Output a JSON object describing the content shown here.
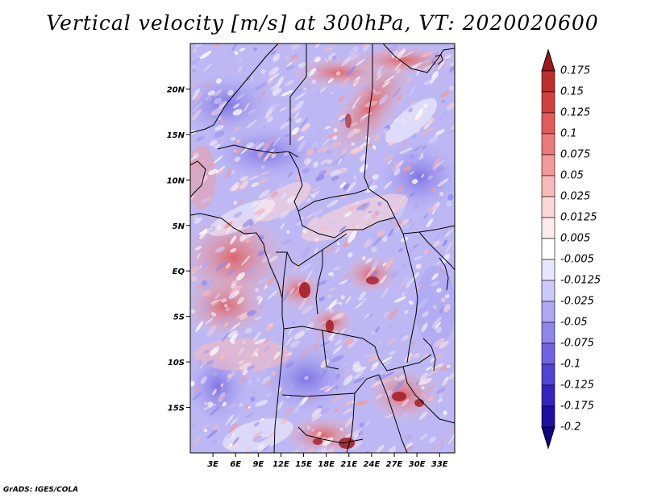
{
  "title": "Vertical velocity [m/s] at 300hPa, VT: 2020020600",
  "footer": "GrADS: IGES/COLA",
  "map": {
    "variable": "Vertical velocity",
    "units": "m/s",
    "level": "300hPa",
    "valid_time": "2020020600",
    "lon_range": [
      0,
      35
    ],
    "lat_range": [
      -20,
      25
    ],
    "x_ticks": [
      "3E",
      "6E",
      "9E",
      "12E",
      "15E",
      "18E",
      "21E",
      "24E",
      "27E",
      "30E",
      "33E"
    ],
    "y_ticks": [
      "20N",
      "15N",
      "10N",
      "5N",
      "EQ",
      "5S",
      "10S",
      "15S"
    ]
  },
  "colorbar": {
    "labels": [
      "0.175",
      "0.15",
      "0.125",
      "0.1",
      "0.075",
      "0.05",
      "0.025",
      "0.0125",
      "0.005",
      "-0.005",
      "-0.0125",
      "-0.025",
      "-0.05",
      "-0.075",
      "-0.1",
      "-0.125",
      "-0.175",
      "-0.2"
    ],
    "colors": [
      "#a0161a",
      "#bb2e2e",
      "#d04242",
      "#e05c5c",
      "#eb7a7a",
      "#f29a9a",
      "#f7baba",
      "#fbd6d6",
      "#fdeaea",
      "#ffffff",
      "#e8e6fc",
      "#cdc9f7",
      "#aea8f1",
      "#8f86ea",
      "#6f63e0",
      "#5144d2",
      "#3426bd",
      "#1d10a0",
      "#0d0585"
    ]
  }
}
